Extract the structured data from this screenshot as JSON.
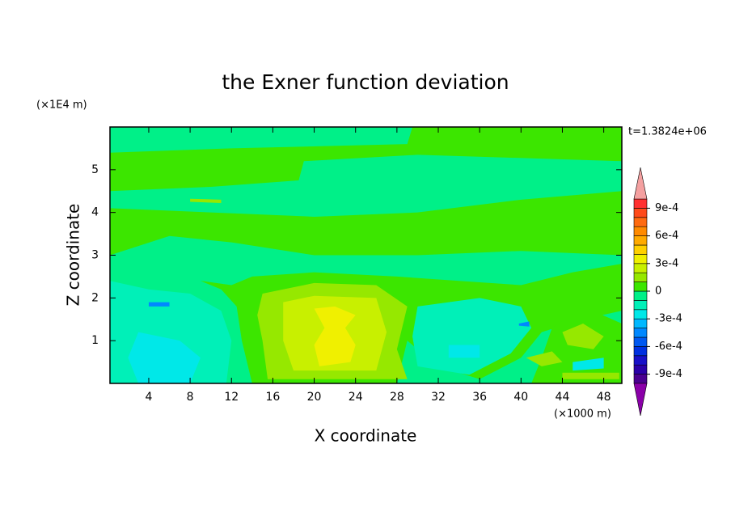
{
  "chart_data": {
    "type": "contour",
    "title": "the Exner function deviation",
    "xlabel": "X coordinate",
    "ylabel": "Z coordinate",
    "xunit": "(×1000 m)",
    "yunit": "(×1E4 m)",
    "annotation": "t=1.3824e+06",
    "xlim": [
      0.25,
      49.75
    ],
    "ylim": [
      0,
      6
    ],
    "xticks": [
      4,
      8,
      12,
      16,
      20,
      24,
      28,
      32,
      36,
      40,
      44,
      48
    ],
    "yticks": [
      1,
      2,
      3,
      4,
      5
    ],
    "levels": [
      -0.001,
      -0.0009,
      -0.0008,
      -0.0007,
      -0.0006,
      -0.0005,
      -0.0004,
      -0.0003,
      -0.0002,
      -0.0001,
      0,
      0.0001,
      0.0002,
      0.0003,
      0.0004,
      0.0005,
      0.0006,
      0.0007,
      0.0008,
      0.0009,
      0.001
    ],
    "colors": [
      "#8a00a8",
      "#4a0090",
      "#2a00a8",
      "#1810c8",
      "#0030e0",
      "#0058f0",
      "#0088ff",
      "#00b8ff",
      "#00e8e8",
      "#00f0b8",
      "#00f088",
      "#3ce600",
      "#96e800",
      "#c8f000",
      "#f0f000",
      "#ffd000",
      "#ffaa00",
      "#ff8a00",
      "#ff6a10",
      "#ff4a1a",
      "#ff3030",
      "#f4a0a0"
    ],
    "colorbar_ticks": [
      {
        "value": -0.0009,
        "label": "-9e-4"
      },
      {
        "value": -0.0006,
        "label": "-6e-4"
      },
      {
        "value": -0.0003,
        "label": "-3e-4"
      },
      0,
      {
        "value": 0.0003,
        "label": "3e-4"
      },
      {
        "value": 0.0006,
        "label": "6e-4"
      },
      {
        "value": 0.0009,
        "label": "9e-4"
      }
    ],
    "regions": [
      {
        "level": -0.0001,
        "x": [
          0.25,
          49.75,
          49.75,
          0.25
        ],
        "y": [
          0,
          0,
          6,
          6
        ]
      },
      {
        "level": 0,
        "x": [
          0.25,
          12,
          29,
          29.5,
          49.75,
          49.75,
          30,
          19,
          18.5,
          10,
          0.25
        ],
        "y": [
          5.4,
          5.5,
          5.6,
          6,
          6,
          5.2,
          5.35,
          5.2,
          4.75,
          4.6,
          4.5
        ]
      },
      {
        "level": 0,
        "x": [
          0.25,
          10,
          20,
          30,
          40,
          49.75,
          49.75,
          40,
          30,
          20,
          12,
          6,
          0.25
        ],
        "y": [
          4.1,
          4.0,
          3.9,
          4.0,
          4.3,
          4.5,
          3.0,
          3.1,
          3.0,
          3.0,
          3.3,
          3.45,
          3.0
        ]
      },
      {
        "level": 0,
        "x": [
          9,
          12,
          14,
          20,
          28,
          34,
          40,
          45,
          49.75,
          49.75,
          46,
          42,
          40,
          36,
          32,
          29,
          28,
          14,
          13,
          12.5,
          11
        ],
        "y": [
          2.4,
          2.3,
          2.5,
          2.6,
          2.5,
          2.4,
          2.3,
          2.6,
          2.8,
          1.7,
          1.5,
          1.2,
          0.6,
          0.1,
          0.4,
          1.0,
          0,
          0,
          1.0,
          1.8,
          2.2
        ]
      },
      {
        "level": 0,
        "x": [
          41,
          49.75,
          49.75,
          46,
          43,
          42
        ],
        "y": [
          0,
          0,
          1.4,
          1.8,
          1.3,
          0.6
        ]
      },
      {
        "level": -0.0002,
        "x": [
          0.25,
          4,
          8,
          11,
          12,
          11.5,
          0.25
        ],
        "y": [
          2.4,
          2.2,
          2.1,
          1.7,
          1.0,
          0,
          0
        ]
      },
      {
        "level": -0.0002,
        "x": [
          30,
          36,
          40,
          41,
          39,
          35,
          30,
          29.5
        ],
        "y": [
          1.8,
          2.0,
          1.8,
          1.3,
          0.7,
          0.2,
          0.4,
          1.1
        ]
      },
      {
        "level": 0.0001,
        "x": [
          15,
          20,
          26,
          29,
          28,
          29,
          15.5,
          15,
          14.5
        ],
        "y": [
          2.1,
          2.35,
          2.3,
          1.8,
          0.8,
          0.1,
          0.1,
          1.0,
          1.6
        ]
      },
      {
        "level": 0.0002,
        "x": [
          17,
          20,
          26,
          27,
          26,
          18,
          17
        ],
        "y": [
          1.9,
          2.05,
          2.0,
          1.2,
          0.3,
          0.3,
          1.0
        ]
      },
      {
        "level": 0.0003,
        "x": [
          20,
          22,
          24,
          23,
          24,
          23.5,
          20.5,
          20,
          21
        ],
        "y": [
          1.75,
          1.8,
          1.6,
          1.3,
          0.9,
          0.5,
          0.4,
          0.9,
          1.3
        ]
      },
      {
        "level": 0.0001,
        "x": [
          44,
          46,
          48,
          47,
          44.5
        ],
        "y": [
          1.2,
          1.4,
          1.1,
          0.8,
          0.9
        ]
      },
      {
        "level": 0.0001,
        "x": [
          40.5,
          43,
          44,
          42
        ],
        "y": [
          0.6,
          0.75,
          0.5,
          0.4
        ]
      },
      {
        "level": 0.0001,
        "x": [
          44,
          49.5,
          49.5,
          44
        ],
        "y": [
          0.1,
          0.1,
          0.25,
          0.25
        ]
      },
      {
        "level": -0.0003,
        "x": [
          3,
          7,
          9,
          8,
          3,
          2
        ],
        "y": [
          1.2,
          1.0,
          0.6,
          0,
          0,
          0.6
        ]
      },
      {
        "level": -0.0003,
        "x": [
          33,
          36,
          36,
          33
        ],
        "y": [
          0.9,
          0.9,
          0.6,
          0.6
        ]
      },
      {
        "level": -0.0003,
        "x": [
          45,
          48,
          48,
          45
        ],
        "y": [
          0.5,
          0.6,
          0.35,
          0.3
        ]
      },
      {
        "level": -0.0005,
        "x": [
          4,
          6,
          6,
          4
        ],
        "y": [
          1.9,
          1.9,
          1.8,
          1.8
        ]
      },
      {
        "level": -0.0005,
        "x": [
          39.8,
          40.8,
          40.8,
          39.8
        ],
        "y": [
          1.4,
          1.45,
          1.33,
          1.35
        ]
      },
      {
        "level": 0.0001,
        "x": [
          8,
          11,
          11,
          8
        ],
        "y": [
          4.32,
          4.3,
          4.22,
          4.25
        ]
      }
    ]
  }
}
